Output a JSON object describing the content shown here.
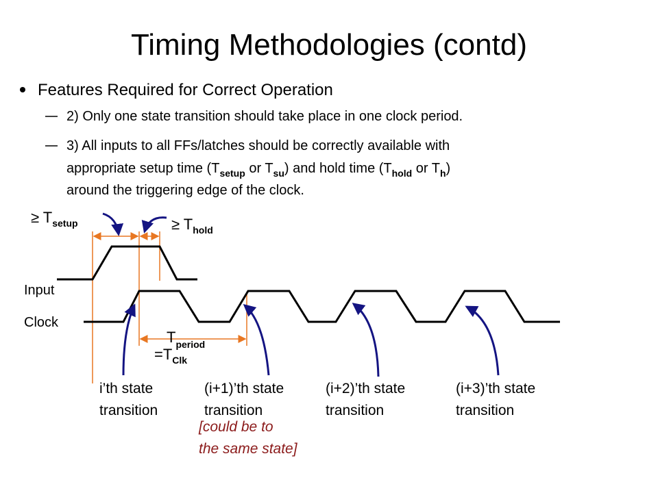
{
  "title": "Timing Methodologies (contd)",
  "bullet": {
    "text": "Features Required for Correct Operation",
    "items": [
      {
        "lines": [
          [
            "2) Only one state transition should take place in one clock period."
          ]
        ]
      },
      {
        "lines": [
          [
            "3) All inputs to all FFs/latches should be correctly available with"
          ],
          [
            "appropriate setup time (T",
            "setup",
            " or T",
            "su",
            ") and hold time (T",
            "hold",
            " or T",
            "h",
            ")"
          ],
          [
            "around the triggering edge of the clock."
          ]
        ]
      }
    ]
  },
  "diagram": {
    "setup_label": [
      "≥ T",
      "setup"
    ],
    "hold_label": [
      "≥ T",
      "hold"
    ],
    "signals": [
      "Input",
      "Clock"
    ],
    "period_label": [
      [
        "T",
        "period"
      ],
      [
        "=T",
        "Clk"
      ]
    ],
    "transitions": [
      [
        "i’th state",
        "transition"
      ],
      [
        "(i+1)’th state",
        "transition"
      ],
      [
        "(i+2)’th state",
        "transition"
      ],
      [
        "(i+3)’th state",
        "transition"
      ]
    ],
    "note": [
      "[could be to",
      "the same state]"
    ]
  }
}
